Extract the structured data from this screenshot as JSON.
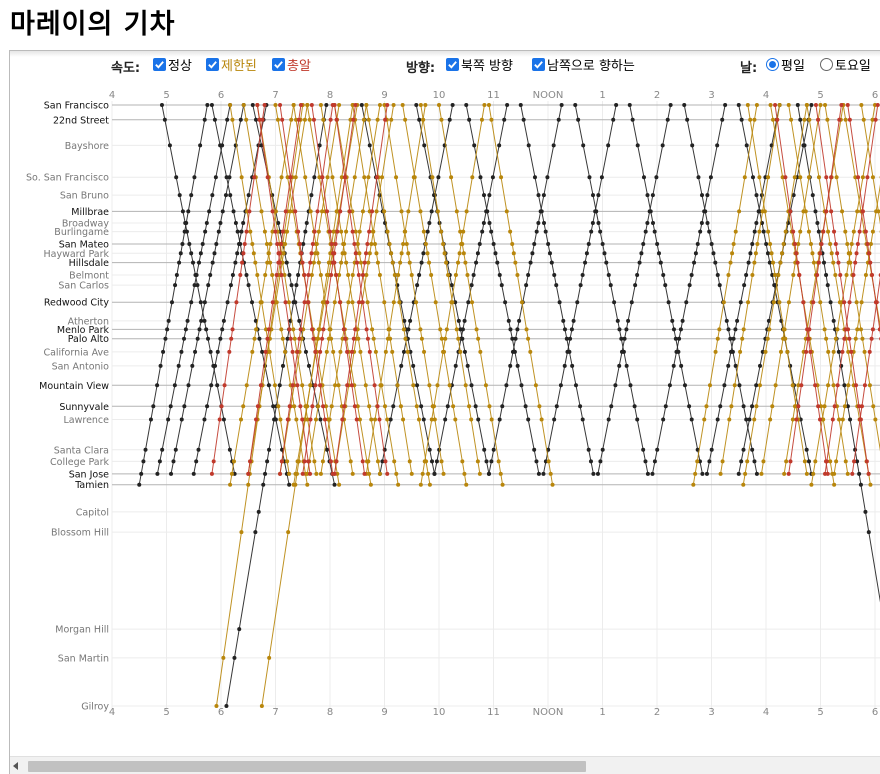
{
  "title": "마레이의 기차",
  "controls": {
    "speed_label": "속도:",
    "speed_options": [
      {
        "label": "정상",
        "checked": true,
        "color": "#222222"
      },
      {
        "label": "제한된",
        "checked": true,
        "color": "#b8860b"
      },
      {
        "label": "총알",
        "checked": true,
        "color": "#c0392b"
      }
    ],
    "direction_label": "방향:",
    "direction_options": [
      {
        "label": "북쪽 방향",
        "checked": true
      },
      {
        "label": "남쪽으로 향하는",
        "checked": true
      }
    ],
    "day_label": "날:",
    "day_options": [
      {
        "label": "평일",
        "selected": true
      },
      {
        "label": "토요일",
        "selected": false
      }
    ]
  },
  "chart_data": {
    "type": "line",
    "subtype": "Marey train timetable",
    "x_ticks": [
      "4",
      "5",
      "6",
      "7",
      "8",
      "9",
      "10",
      "11",
      "NOON",
      "1",
      "2",
      "3",
      "4",
      "5",
      "6"
    ],
    "xlim_hours": [
      4,
      18.5
    ],
    "stations": [
      {
        "name": "San Francisco",
        "major": true,
        "distance": 0
      },
      {
        "name": "22nd Street",
        "major": true,
        "distance": 1.9
      },
      {
        "name": "Bayshore",
        "major": false,
        "distance": 5.2
      },
      {
        "name": "So. San Francisco",
        "major": false,
        "distance": 9.3
      },
      {
        "name": "San Bruno",
        "major": false,
        "distance": 11.6
      },
      {
        "name": "Millbrae",
        "major": true,
        "distance": 13.7
      },
      {
        "name": "Broadway",
        "major": false,
        "distance": 15.2
      },
      {
        "name": "Burlingame",
        "major": false,
        "distance": 16.3
      },
      {
        "name": "San Mateo",
        "major": true,
        "distance": 17.9
      },
      {
        "name": "Hayward Park",
        "major": false,
        "distance": 19.1
      },
      {
        "name": "Hillsdale",
        "major": true,
        "distance": 20.3
      },
      {
        "name": "Belmont",
        "major": false,
        "distance": 21.9
      },
      {
        "name": "San Carlos",
        "major": false,
        "distance": 23.2
      },
      {
        "name": "Redwood City",
        "major": true,
        "distance": 25.4
      },
      {
        "name": "Atherton",
        "major": false,
        "distance": 27.8
      },
      {
        "name": "Menlo Park",
        "major": true,
        "distance": 28.9
      },
      {
        "name": "Palo Alto",
        "major": true,
        "distance": 30.1
      },
      {
        "name": "California Ave",
        "major": false,
        "distance": 31.8
      },
      {
        "name": "San Antonio",
        "major": false,
        "distance": 33.6
      },
      {
        "name": "Mountain View",
        "major": true,
        "distance": 36.1
      },
      {
        "name": "Sunnyvale",
        "major": true,
        "distance": 38.8
      },
      {
        "name": "Lawrence",
        "major": false,
        "distance": 40.5
      },
      {
        "name": "Santa Clara",
        "major": false,
        "distance": 44.4
      },
      {
        "name": "College Park",
        "major": false,
        "distance": 45.9
      },
      {
        "name": "San Jose",
        "major": true,
        "distance": 47.5
      },
      {
        "name": "Tamien",
        "major": true,
        "distance": 48.9
      },
      {
        "name": "Capitol",
        "major": false,
        "distance": 52.4
      },
      {
        "name": "Blossom Hill",
        "major": false,
        "distance": 55.0
      },
      {
        "name": "Morgan Hill",
        "major": false,
        "distance": 67.5
      },
      {
        "name": "San Martin",
        "major": false,
        "distance": 71.2
      },
      {
        "name": "Gilroy",
        "major": false,
        "distance": 77.4
      }
    ],
    "series_colors": {
      "normal": "#222222",
      "limited": "#b8860b",
      "bullet": "#c0392b"
    },
    "grid": true,
    "trains": [
      {
        "service": "normal",
        "direction": "north",
        "depart": "4:30",
        "from": "Tamien",
        "to": "San Francisco",
        "minutes": 75
      },
      {
        "service": "normal",
        "direction": "north",
        "depart": "4:50",
        "from": "San Jose",
        "to": "San Francisco",
        "minutes": 80
      },
      {
        "service": "normal",
        "direction": "north",
        "depart": "5:05",
        "from": "San Jose",
        "to": "San Francisco",
        "minutes": 80
      },
      {
        "service": "normal",
        "direction": "north",
        "depart": "5:30",
        "from": "San Jose",
        "to": "San Francisco",
        "minutes": 80
      },
      {
        "service": "normal",
        "direction": "north",
        "depart": "6:06",
        "from": "Gilroy",
        "to": "San Francisco",
        "minutes": 110
      },
      {
        "service": "normal",
        "direction": "south",
        "depart": "4:55",
        "from": "San Francisco",
        "to": "San Jose",
        "minutes": 80
      },
      {
        "service": "normal",
        "direction": "south",
        "depart": "5:50",
        "from": "San Francisco",
        "to": "Tamien",
        "minutes": 85
      },
      {
        "service": "normal",
        "direction": "south",
        "depart": "6:35",
        "from": "San Francisco",
        "to": "Tamien",
        "minutes": 90
      },
      {
        "service": "normal",
        "direction": "south",
        "depart": "8:35",
        "from": "San Francisco",
        "to": "San Jose",
        "minutes": 80
      },
      {
        "service": "normal",
        "direction": "north",
        "depart": "8:55",
        "from": "San Jose",
        "to": "San Francisco",
        "minutes": 80
      },
      {
        "service": "normal",
        "direction": "south",
        "depart": "9:35",
        "from": "San Francisco",
        "to": "San Jose",
        "minutes": 80
      },
      {
        "service": "normal",
        "direction": "north",
        "depart": "9:55",
        "from": "San Jose",
        "to": "San Francisco",
        "minutes": 80
      },
      {
        "service": "normal",
        "direction": "south",
        "depart": "10:30",
        "from": "San Francisco",
        "to": "San Jose",
        "minutes": 80
      },
      {
        "service": "normal",
        "direction": "north",
        "depart": "10:55",
        "from": "San Jose",
        "to": "San Francisco",
        "minutes": 80
      },
      {
        "service": "normal",
        "direction": "south",
        "depart": "11:30",
        "from": "San Francisco",
        "to": "San Jose",
        "minutes": 80
      },
      {
        "service": "normal",
        "direction": "north",
        "depart": "11:55",
        "from": "San Jose",
        "to": "San Francisco",
        "minutes": 80
      },
      {
        "service": "normal",
        "direction": "south",
        "depart": "12:30",
        "from": "San Francisco",
        "to": "San Jose",
        "minutes": 80
      },
      {
        "service": "normal",
        "direction": "north",
        "depart": "12:55",
        "from": "San Jose",
        "to": "San Francisco",
        "minutes": 80
      },
      {
        "service": "normal",
        "direction": "south",
        "depart": "13:30",
        "from": "San Francisco",
        "to": "San Jose",
        "minutes": 80
      },
      {
        "service": "normal",
        "direction": "north",
        "depart": "13:55",
        "from": "San Jose",
        "to": "San Francisco",
        "minutes": 80
      },
      {
        "service": "normal",
        "direction": "south",
        "depart": "14:30",
        "from": "San Francisco",
        "to": "San Jose",
        "minutes": 80
      },
      {
        "service": "normal",
        "direction": "north",
        "depart": "14:55",
        "from": "San Jose",
        "to": "San Francisco",
        "minutes": 80
      },
      {
        "service": "normal",
        "direction": "south",
        "depart": "15:30",
        "from": "San Francisco",
        "to": "San Jose",
        "minutes": 80
      },
      {
        "service": "normal",
        "direction": "north",
        "depart": "15:30",
        "from": "San Jose",
        "to": "San Francisco",
        "minutes": 80
      },
      {
        "service": "normal",
        "direction": "south",
        "depart": "16:35",
        "from": "San Francisco",
        "to": "Gilroy",
        "minutes": 110
      },
      {
        "service": "limited",
        "direction": "north",
        "depart": "5:55",
        "from": "Gilroy",
        "to": "San Francisco",
        "minutes": 95
      },
      {
        "service": "limited",
        "direction": "north",
        "depart": "6:10",
        "from": "Tamien",
        "to": "San Francisco",
        "minutes": 70
      },
      {
        "service": "limited",
        "direction": "north",
        "depart": "6:30",
        "from": "San Jose",
        "to": "San Francisco",
        "minutes": 65
      },
      {
        "service": "limited",
        "direction": "north",
        "depart": "6:45",
        "from": "Gilroy",
        "to": "San Francisco",
        "minutes": 100
      },
      {
        "service": "limited",
        "direction": "north",
        "depart": "7:05",
        "from": "San Jose",
        "to": "San Francisco",
        "minutes": 65
      },
      {
        "service": "limited",
        "direction": "north",
        "depart": "7:20",
        "from": "Tamien",
        "to": "San Francisco",
        "minutes": 70
      },
      {
        "service": "limited",
        "direction": "north",
        "depart": "7:35",
        "from": "San Jose",
        "to": "San Francisco",
        "minutes": 65
      },
      {
        "service": "limited",
        "direction": "north",
        "depart": "7:50",
        "from": "San Jose",
        "to": "San Francisco",
        "minutes": 65
      },
      {
        "service": "limited",
        "direction": "north",
        "depart": "8:05",
        "from": "San Jose",
        "to": "San Francisco",
        "minutes": 65
      },
      {
        "service": "limited",
        "direction": "north",
        "depart": "8:40",
        "from": "San Jose",
        "to": "San Francisco",
        "minutes": 65
      },
      {
        "service": "limited",
        "direction": "north",
        "depart": "9:40",
        "from": "Tamien",
        "to": "San Francisco",
        "minutes": 70
      },
      {
        "service": "limited",
        "direction": "south",
        "depart": "6:10",
        "from": "San Francisco",
        "to": "San Jose",
        "minutes": 65
      },
      {
        "service": "limited",
        "direction": "south",
        "depart": "6:25",
        "from": "San Francisco",
        "to": "Tamien",
        "minutes": 70
      },
      {
        "service": "limited",
        "direction": "south",
        "depart": "6:40",
        "from": "San Francisco",
        "to": "San Jose",
        "minutes": 65
      },
      {
        "service": "limited",
        "direction": "south",
        "depart": "7:00",
        "from": "San Francisco",
        "to": "Tamien",
        "minutes": 70
      },
      {
        "service": "limited",
        "direction": "south",
        "depart": "7:20",
        "from": "San Francisco",
        "to": "San Jose",
        "minutes": 65
      },
      {
        "service": "limited",
        "direction": "south",
        "depart": "7:35",
        "from": "San Francisco",
        "to": "Tamien",
        "minutes": 70
      },
      {
        "service": "limited",
        "direction": "south",
        "depart": "7:50",
        "from": "San Francisco",
        "to": "San Jose",
        "minutes": 65
      },
      {
        "service": "limited",
        "direction": "south",
        "depart": "8:05",
        "from": "San Francisco",
        "to": "Tamien",
        "minutes": 70
      },
      {
        "service": "limited",
        "direction": "south",
        "depart": "8:25",
        "from": "San Francisco",
        "to": "San Jose",
        "minutes": 65
      },
      {
        "service": "limited",
        "direction": "south",
        "depart": "8:40",
        "from": "San Francisco",
        "to": "Tamien",
        "minutes": 70
      },
      {
        "service": "limited",
        "direction": "south",
        "depart": "9:00",
        "from": "San Francisco",
        "to": "San Jose",
        "minutes": 65
      },
      {
        "service": "limited",
        "direction": "south",
        "depart": "9:20",
        "from": "San Francisco",
        "to": "Tamien",
        "minutes": 70
      },
      {
        "service": "limited",
        "direction": "south",
        "depart": "9:40",
        "from": "San Francisco",
        "to": "San Jose",
        "minutes": 65
      },
      {
        "service": "limited",
        "direction": "south",
        "depart": "10:00",
        "from": "San Francisco",
        "to": "Tamien",
        "minutes": 70
      },
      {
        "service": "limited",
        "direction": "south",
        "depart": "10:55",
        "from": "San Francisco",
        "to": "Tamien",
        "minutes": 70
      },
      {
        "service": "limited",
        "direction": "north",
        "depart": "14:40",
        "from": "Tamien",
        "to": "San Francisco",
        "minutes": 70
      },
      {
        "service": "limited",
        "direction": "north",
        "depart": "15:10",
        "from": "San Jose",
        "to": "San Francisco",
        "minutes": 65
      },
      {
        "service": "limited",
        "direction": "north",
        "depart": "15:35",
        "from": "Tamien",
        "to": "San Francisco",
        "minutes": 70
      },
      {
        "service": "limited",
        "direction": "north",
        "depart": "15:55",
        "from": "San Jose",
        "to": "San Francisco",
        "minutes": 65
      },
      {
        "service": "limited",
        "direction": "north",
        "depart": "16:20",
        "from": "San Jose",
        "to": "San Francisco",
        "minutes": 65
      },
      {
        "service": "limited",
        "direction": "north",
        "depart": "16:50",
        "from": "Tamien",
        "to": "San Francisco",
        "minutes": 70
      },
      {
        "service": "limited",
        "direction": "north",
        "depart": "17:15",
        "from": "San Jose",
        "to": "San Francisco",
        "minutes": 65
      },
      {
        "service": "limited",
        "direction": "south",
        "depart": "15:40",
        "from": "San Francisco",
        "to": "San Jose",
        "minutes": 65
      },
      {
        "service": "limited",
        "direction": "south",
        "depart": "16:05",
        "from": "San Francisco",
        "to": "Tamien",
        "minutes": 70
      },
      {
        "service": "limited",
        "direction": "south",
        "depart": "16:25",
        "from": "San Francisco",
        "to": "San Jose",
        "minutes": 65
      },
      {
        "service": "limited",
        "direction": "south",
        "depart": "16:45",
        "from": "San Francisco",
        "to": "Tamien",
        "minutes": 70
      },
      {
        "service": "limited",
        "direction": "south",
        "depart": "17:05",
        "from": "San Francisco",
        "to": "San Jose",
        "minutes": 65
      },
      {
        "service": "limited",
        "direction": "south",
        "depart": "17:25",
        "from": "San Francisco",
        "to": "Tamien",
        "minutes": 70
      },
      {
        "service": "limited",
        "direction": "south",
        "depart": "17:45",
        "from": "San Francisco",
        "to": "San Jose",
        "minutes": 65
      },
      {
        "service": "bullet",
        "direction": "north",
        "depart": "5:50",
        "from": "San Jose",
        "to": "San Francisco",
        "minutes": 58
      },
      {
        "service": "bullet",
        "direction": "north",
        "depart": "6:30",
        "from": "San Jose",
        "to": "San Francisco",
        "minutes": 58
      },
      {
        "service": "bullet",
        "direction": "north",
        "depart": "7:05",
        "from": "San Jose",
        "to": "San Francisco",
        "minutes": 58
      },
      {
        "service": "bullet",
        "direction": "north",
        "depart": "7:30",
        "from": "San Jose",
        "to": "San Francisco",
        "minutes": 58
      },
      {
        "service": "bullet",
        "direction": "north",
        "depart": "8:05",
        "from": "San Jose",
        "to": "San Francisco",
        "minutes": 58
      },
      {
        "service": "bullet",
        "direction": "south",
        "depart": "6:40",
        "from": "San Francisco",
        "to": "San Jose",
        "minutes": 58
      },
      {
        "service": "bullet",
        "direction": "south",
        "depart": "7:05",
        "from": "San Francisco",
        "to": "San Jose",
        "minutes": 58
      },
      {
        "service": "bullet",
        "direction": "south",
        "depart": "7:40",
        "from": "San Francisco",
        "to": "San Jose",
        "minutes": 58
      },
      {
        "service": "bullet",
        "direction": "south",
        "depart": "8:05",
        "from": "San Francisco",
        "to": "San Jose",
        "minutes": 58
      },
      {
        "service": "bullet",
        "direction": "north",
        "depart": "16:25",
        "from": "San Jose",
        "to": "San Francisco",
        "minutes": 58
      },
      {
        "service": "bullet",
        "direction": "north",
        "depart": "17:05",
        "from": "San Jose",
        "to": "San Francisco",
        "minutes": 58
      },
      {
        "service": "bullet",
        "direction": "north",
        "depart": "17:35",
        "from": "San Jose",
        "to": "San Francisco",
        "minutes": 58
      },
      {
        "service": "bullet",
        "direction": "south",
        "depart": "16:10",
        "from": "San Francisco",
        "to": "San Jose",
        "minutes": 58
      },
      {
        "service": "bullet",
        "direction": "south",
        "depart": "16:55",
        "from": "San Francisco",
        "to": "San Jose",
        "minutes": 58
      },
      {
        "service": "bullet",
        "direction": "south",
        "depart": "17:30",
        "from": "San Francisco",
        "to": "San Jose",
        "minutes": 58
      }
    ]
  }
}
